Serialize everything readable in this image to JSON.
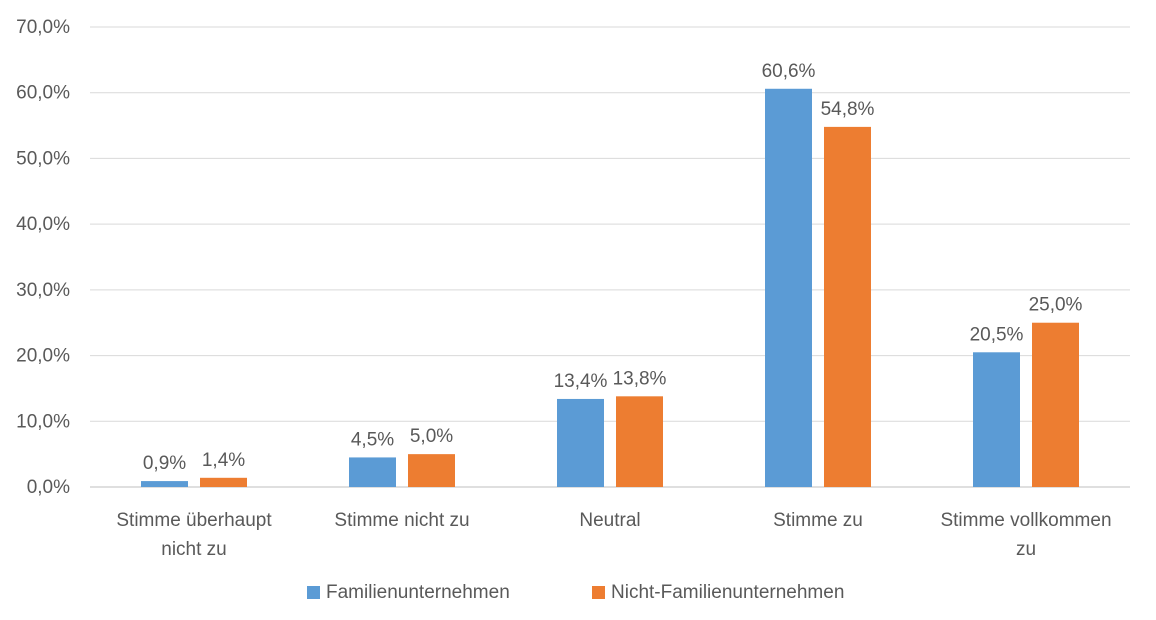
{
  "chart_data": {
    "type": "bar",
    "categories": [
      [
        "Stimme überhaupt",
        "nicht zu"
      ],
      [
        "Stimme nicht zu"
      ],
      [
        "Neutral"
      ],
      [
        "Stimme zu"
      ],
      [
        "Stimme vollkommen",
        "zu"
      ]
    ],
    "series": [
      {
        "name": "Familienunternehmen",
        "color": "#5B9BD5",
        "values": [
          0.9,
          4.5,
          13.4,
          60.6,
          20.5
        ],
        "labels": [
          "0,9%",
          "4,5%",
          "13,4%",
          "60,6%",
          "20,5%"
        ]
      },
      {
        "name": "Nicht-Familienunternehmen",
        "color": "#ED7D31",
        "values": [
          1.4,
          5.0,
          13.8,
          54.8,
          25.0
        ],
        "labels": [
          "1,4%",
          "5,0%",
          "13,8%",
          "54,8%",
          "25,0%"
        ]
      }
    ],
    "ylim": [
      0,
      70
    ],
    "yticks": [
      0,
      10,
      20,
      30,
      40,
      50,
      60,
      70
    ],
    "ytick_labels": [
      "0,0%",
      "10,0%",
      "20,0%",
      "30,0%",
      "40,0%",
      "50,0%",
      "60,0%",
      "70,0%"
    ],
    "grid": true,
    "legend": "bottom-center"
  }
}
